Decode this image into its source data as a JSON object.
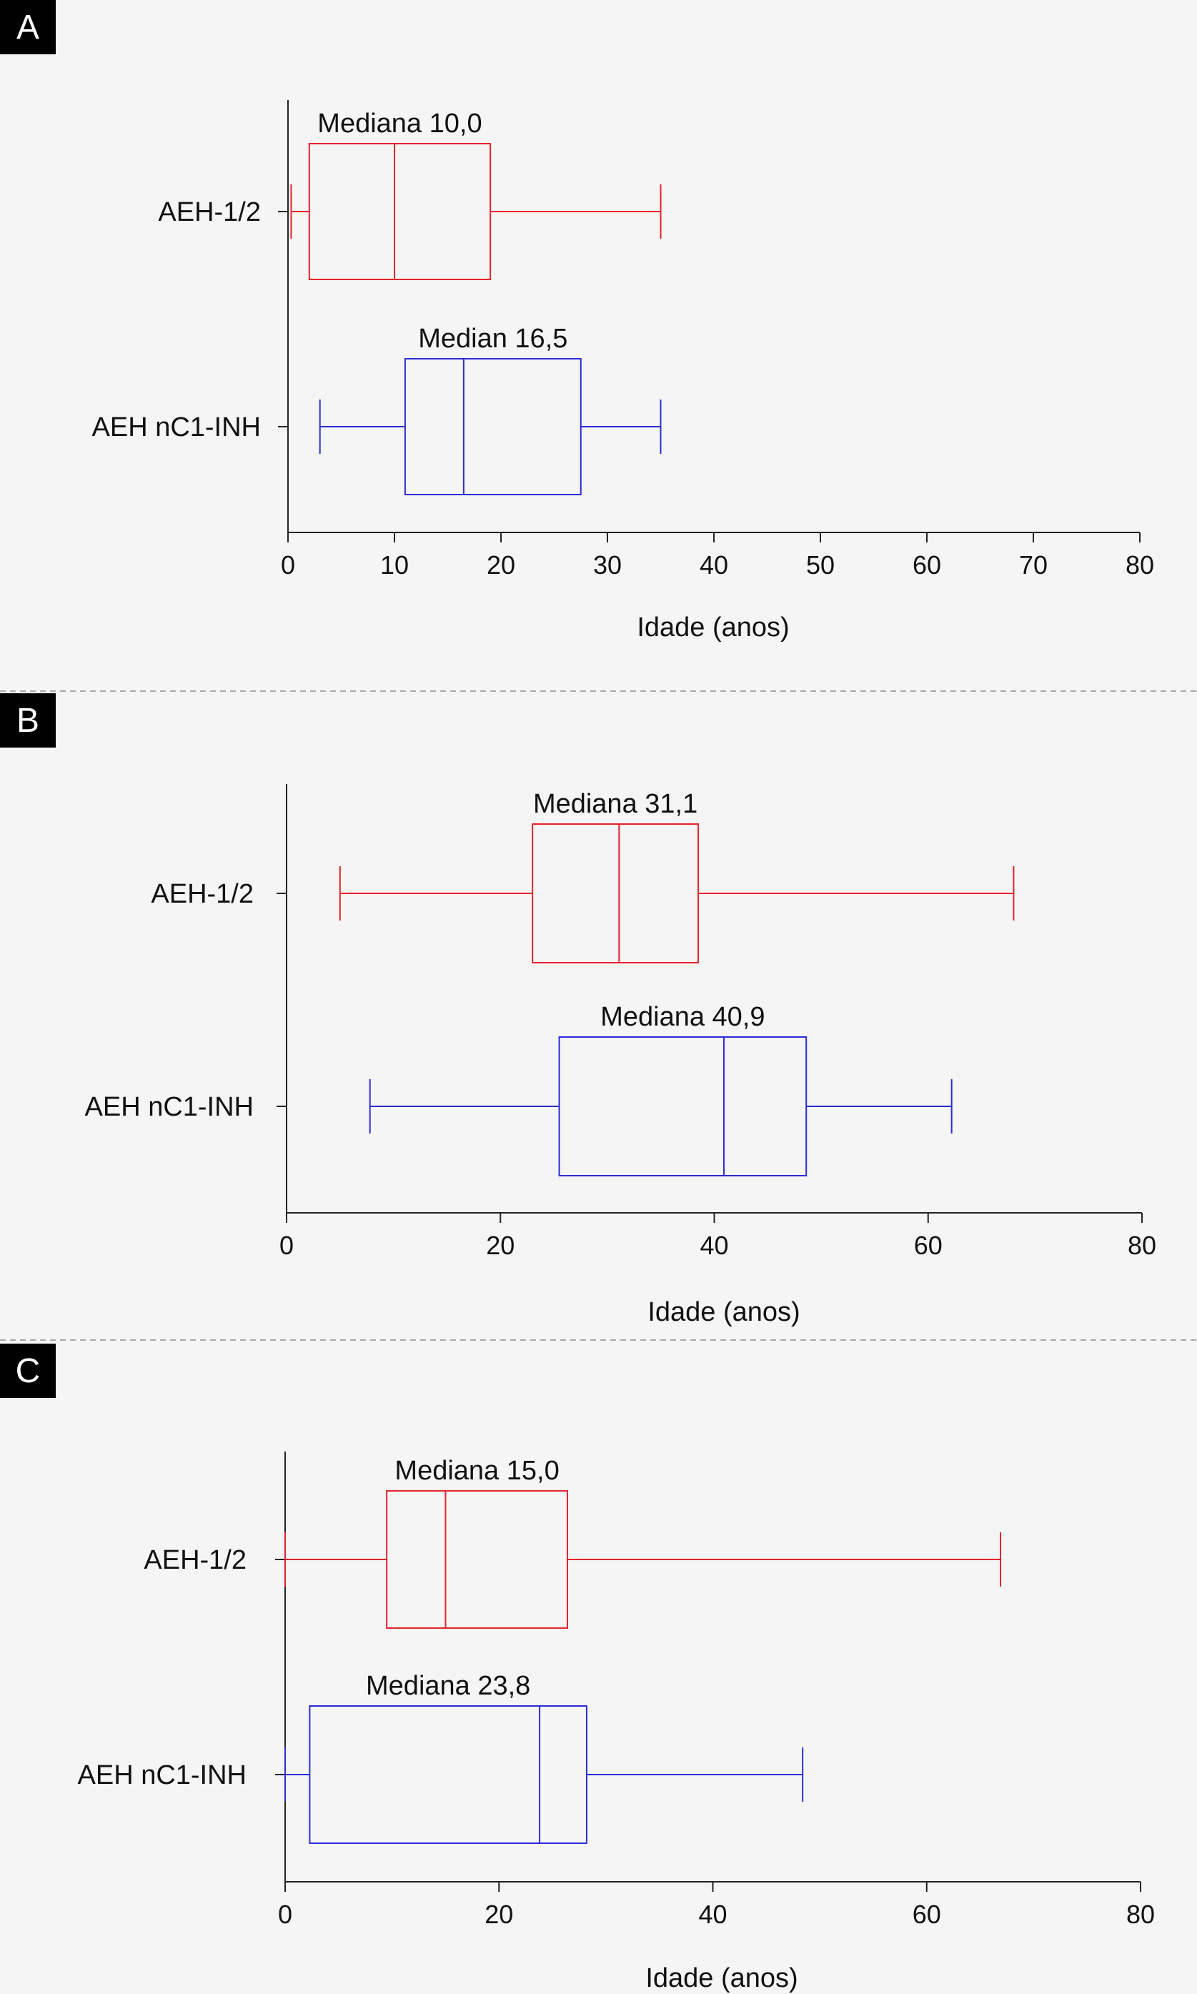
{
  "colors": {
    "background": "#f5f5f5",
    "axis": "#222222",
    "separator": "#a8a8a8",
    "label_box": "#000000",
    "label_text": "#ffffff",
    "red": "#e8212b",
    "blue": "#2b2bd8"
  },
  "chart_data": [
    {
      "panel": "A",
      "type": "box",
      "orientation": "horizontal",
      "xlabel": "Idade (anos)",
      "xlim": [
        0,
        80
      ],
      "xticks": [
        0,
        10,
        20,
        30,
        40,
        50,
        60,
        70,
        80
      ],
      "tick_labels": [
        "0",
        "10",
        "20",
        "30",
        "40",
        "50",
        "60",
        "70",
        "80"
      ],
      "series": [
        {
          "category": "AEH-1/2",
          "color": "red",
          "whisker_low": 0.3,
          "q1": 2.0,
          "median": 10.0,
          "q3": 19.0,
          "whisker_high": 35.0,
          "annotation": "Mediana 10,0"
        },
        {
          "category": "AEH nC1-INH",
          "color": "blue",
          "whisker_low": 3.0,
          "q1": 11.0,
          "median": 16.5,
          "q3": 27.5,
          "whisker_high": 35.0,
          "annotation": "Median 16,5"
        }
      ]
    },
    {
      "panel": "B",
      "type": "box",
      "orientation": "horizontal",
      "xlabel": "Idade (anos)",
      "xlim": [
        0,
        80
      ],
      "xticks": [
        0,
        20,
        40,
        60,
        80
      ],
      "tick_labels": [
        "0",
        "20",
        "40",
        "60",
        "80"
      ],
      "series": [
        {
          "category": "AEH-1/2",
          "color": "red",
          "whisker_low": 5.0,
          "q1": 23.0,
          "median": 31.1,
          "q3": 38.5,
          "whisker_high": 68.0,
          "annotation": "Mediana 31,1"
        },
        {
          "category": "AEH nC1-INH",
          "color": "blue",
          "whisker_low": 7.8,
          "q1": 25.5,
          "median": 40.9,
          "q3": 48.6,
          "whisker_high": 62.2,
          "annotation": "Mediana 40,9"
        }
      ]
    },
    {
      "panel": "C",
      "type": "box",
      "orientation": "horizontal",
      "xlabel": "Idade (anos)",
      "xlim": [
        0,
        80
      ],
      "xticks": [
        0,
        20,
        40,
        60,
        80
      ],
      "tick_labels": [
        "0",
        "20",
        "40",
        "60",
        "80"
      ],
      "series": [
        {
          "category": "AEH-1/2",
          "color": "red",
          "whisker_low": 0.0,
          "q1": 9.5,
          "median": 15.0,
          "q3": 26.4,
          "whisker_high": 66.9,
          "annotation": "Mediana 15,0"
        },
        {
          "category": "AEH nC1-INH",
          "color": "blue",
          "whisker_low": 0.0,
          "q1": 2.3,
          "median": 23.8,
          "q3": 28.2,
          "whisker_high": 48.4,
          "annotation": "Mediana 23,8"
        }
      ]
    }
  ]
}
